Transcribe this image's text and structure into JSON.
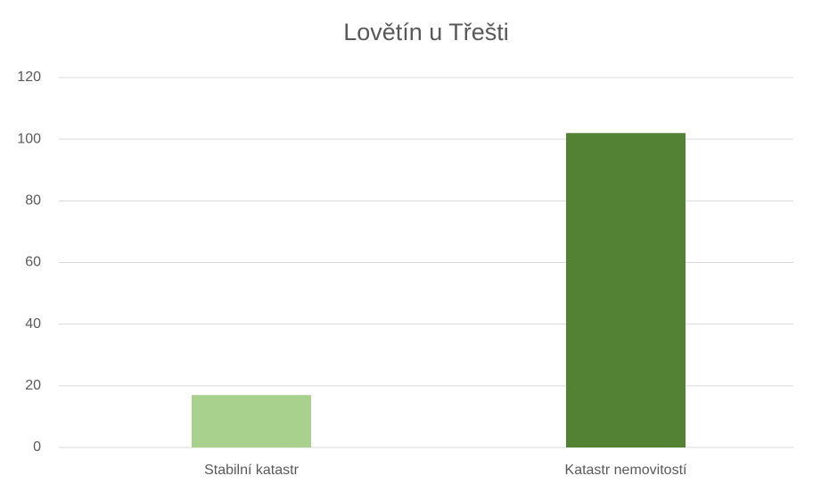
{
  "chart_data": {
    "type": "bar",
    "title": "Lovětín u Třešti",
    "categories": [
      "Stabilní katastr",
      "Katastr nemovitostí"
    ],
    "values": [
      17,
      102
    ],
    "colors": [
      "#a9d18e",
      "#548235"
    ],
    "ylim": [
      0,
      120
    ],
    "yticks": [
      0,
      20,
      40,
      60,
      80,
      100,
      120
    ],
    "grid": true
  }
}
